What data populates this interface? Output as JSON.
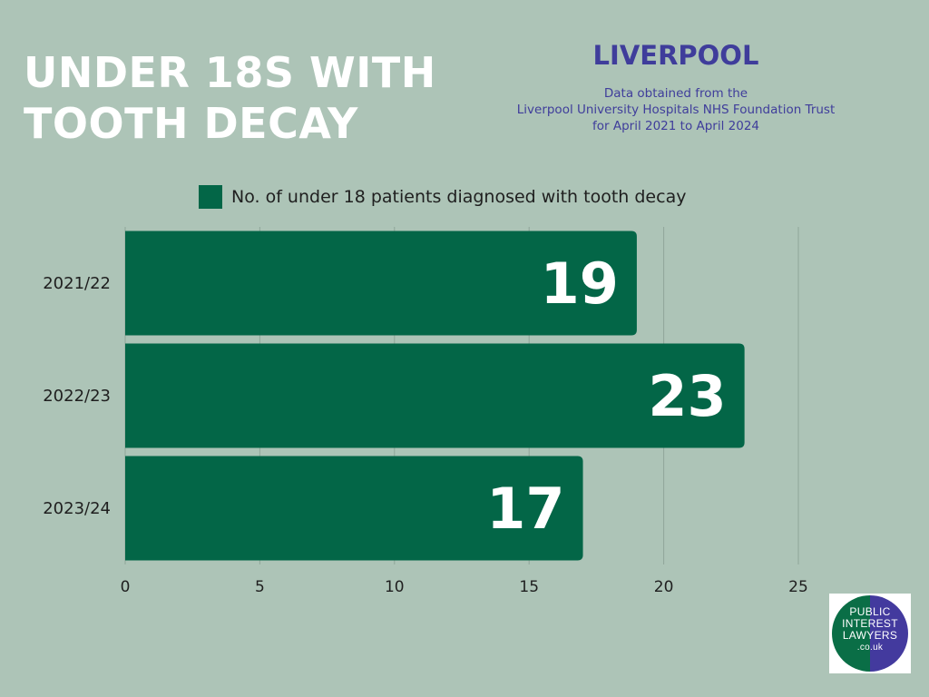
{
  "header": {
    "title_lines": [
      "UNDER 18S WITH",
      "TOOTH DECAY"
    ],
    "location": "LIVERPOOL",
    "source_lines": [
      "Data obtained from the",
      "Liverpool University Hospitals NHS Foundation Trust",
      "for April 2021 to April 2024"
    ]
  },
  "logo": {
    "lines": [
      "PUBLIC",
      "INTEREST",
      "LAWYERS",
      ".co.uk"
    ]
  },
  "colors": {
    "background": "#adc4b7",
    "bar": "#036647",
    "title": "#ffffff",
    "accent": "#3f3d9b",
    "grid": "#8fa699"
  },
  "chart_data": {
    "type": "bar",
    "orientation": "horizontal",
    "categories": [
      "2021/22",
      "2022/23",
      "2023/24"
    ],
    "series": [
      {
        "name": "No. of under 18 patients diagnosed with tooth decay",
        "values": [
          19,
          23,
          17
        ]
      }
    ],
    "xlim": [
      0,
      25
    ],
    "xticks": [
      0,
      5,
      10,
      15,
      20,
      25
    ],
    "grid": true,
    "legend_position": "top",
    "data_labels": true
  }
}
